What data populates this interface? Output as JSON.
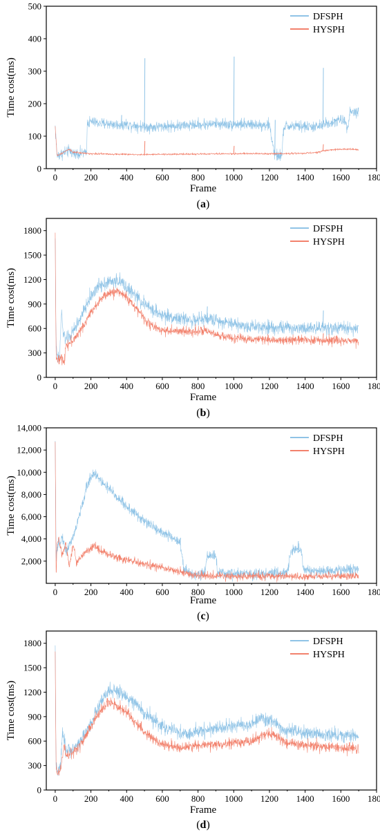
{
  "chart_data": [
    {
      "type": "line",
      "panel_label": "a",
      "xlabel": "Frame",
      "ylabel": "Time cost(ms)",
      "xlim": [
        -50,
        1800
      ],
      "ylim": [
        0,
        500
      ],
      "xticks": [
        "0",
        "200",
        "400",
        "600",
        "800",
        "1000",
        "1200",
        "1400",
        "1600",
        "1800"
      ],
      "yticks": [
        "0",
        "100",
        "200",
        "300",
        "400",
        "500"
      ],
      "grid": false,
      "legend_position": "top-right",
      "series": [
        {
          "name": "DFSPH",
          "color": "#8fc3e6",
          "noise": 12,
          "x": [
            0,
            10,
            20,
            40,
            60,
            80,
            100,
            120,
            150,
            175,
            180,
            200,
            250,
            300,
            350,
            400,
            450,
            500,
            550,
            600,
            700,
            800,
            900,
            1000,
            1100,
            1200,
            1230,
            1270,
            1280,
            1300,
            1400,
            1470,
            1490,
            1500,
            1520,
            1540,
            1600,
            1620,
            1640,
            1650,
            1700
          ],
          "y": [
            130,
            40,
            42,
            48,
            52,
            55,
            48,
            45,
            48,
            50,
            140,
            145,
            140,
            138,
            135,
            137,
            133,
            130,
            128,
            130,
            132,
            135,
            138,
            137,
            135,
            135,
            40,
            40,
            128,
            130,
            130,
            128,
            132,
            135,
            140,
            140,
            150,
            148,
            130,
            175,
            175
          ],
          "spikes": [
            [
              500,
              340
            ],
            [
              1000,
              345
            ],
            [
              1500,
              310
            ],
            [
              370,
              165
            ],
            [
              1230,
              150
            ]
          ]
        },
        {
          "name": "HYSPH",
          "color": "#f2816c",
          "noise": 2,
          "x": [
            0,
            10,
            30,
            60,
            80,
            100,
            150,
            200,
            300,
            400,
            500,
            600,
            800,
            1000,
            1200,
            1400,
            1470,
            1500,
            1550,
            1600,
            1650,
            1700
          ],
          "y": [
            130,
            40,
            45,
            55,
            60,
            50,
            48,
            46,
            45,
            44,
            43,
            44,
            45,
            46,
            46,
            47,
            50,
            55,
            58,
            60,
            60,
            58
          ],
          "spikes": [
            [
              500,
              85
            ],
            [
              1000,
              70
            ],
            [
              1500,
              75
            ]
          ]
        }
      ]
    },
    {
      "type": "line",
      "panel_label": "b",
      "xlabel": "Frame",
      "ylabel": "Time cost(ms)",
      "xlim": [
        -50,
        1800
      ],
      "ylim": [
        0,
        1950
      ],
      "xticks": [
        "0",
        "200",
        "400",
        "600",
        "800",
        "1000",
        "1200",
        "1400",
        "1600",
        "1800"
      ],
      "yticks": [
        "0",
        "300",
        "600",
        "900",
        "1200",
        "1500",
        "1800"
      ],
      "grid": false,
      "legend_position": "top-right",
      "series": [
        {
          "name": "DFSPH",
          "color": "#8fc3e6",
          "noise": 60,
          "x": [
            0,
            5,
            15,
            25,
            35,
            45,
            60,
            80,
            100,
            150,
            200,
            250,
            300,
            350,
            380,
            400,
            450,
            500,
            550,
            600,
            700,
            800,
            850,
            900,
            1000,
            1050,
            1100,
            1200,
            1300,
            1400,
            1500,
            1600,
            1700
          ],
          "y": [
            1750,
            350,
            220,
            260,
            820,
            520,
            480,
            500,
            560,
            760,
            1000,
            1140,
            1170,
            1180,
            1150,
            1100,
            1000,
            900,
            820,
            760,
            720,
            700,
            720,
            700,
            660,
            630,
            630,
            620,
            610,
            610,
            610,
            605,
            600
          ],
          "spikes": [
            [
              850,
              870
            ],
            [
              1500,
              820
            ]
          ]
        },
        {
          "name": "HYSPH",
          "color": "#f2816c",
          "noise": 40,
          "x": [
            0,
            5,
            15,
            30,
            50,
            60,
            80,
            100,
            150,
            200,
            250,
            300,
            350,
            380,
            400,
            450,
            500,
            550,
            600,
            700,
            800,
            850,
            900,
            1000,
            1100,
            1200,
            1300,
            1400,
            1500,
            1600,
            1700
          ],
          "y": [
            1750,
            280,
            190,
            240,
            200,
            400,
            420,
            450,
            600,
            800,
            950,
            1030,
            1060,
            1020,
            980,
            860,
            720,
            620,
            580,
            560,
            570,
            560,
            520,
            480,
            470,
            465,
            460,
            460,
            455,
            455,
            450
          ],
          "spikes": [
            [
              1500,
              540
            ]
          ]
        }
      ]
    },
    {
      "type": "line",
      "panel_label": "c",
      "xlabel": "Frame",
      "ylabel": "Time cost(ms)",
      "xlim": [
        -50,
        1800
      ],
      "ylim": [
        0,
        14000
      ],
      "xticks": [
        "0",
        "200",
        "400",
        "600",
        "800",
        "1000",
        "1200",
        "1400",
        "1600",
        "1800"
      ],
      "yticks": [
        "2,000",
        "4,000",
        "6,000",
        "8,000",
        "10,000",
        "12,000",
        "14,000"
      ],
      "grid": false,
      "legend_position": "top-right",
      "series": [
        {
          "name": "DFSPH",
          "color": "#8fc3e6",
          "noise": 350,
          "x": [
            0,
            5,
            20,
            40,
            60,
            80,
            100,
            120,
            150,
            180,
            200,
            220,
            250,
            300,
            400,
            500,
            600,
            690,
            700,
            720,
            760,
            800,
            840,
            850,
            900,
            910,
            1000,
            1100,
            1200,
            1300,
            1320,
            1380,
            1390,
            1500,
            1600,
            1700
          ],
          "y": [
            12500,
            2500,
            3500,
            4200,
            2800,
            3500,
            4200,
            5200,
            7000,
            8800,
            9600,
            10000,
            9300,
            8500,
            6900,
            5600,
            4600,
            3800,
            3700,
            1200,
            900,
            800,
            900,
            2500,
            2500,
            900,
            850,
            850,
            900,
            950,
            3000,
            3000,
            1200,
            1100,
            1200,
            1300
          ],
          "spikes": [
            [
              700,
              4100
            ],
            [
              1360,
              3800
            ]
          ]
        },
        {
          "name": "HYSPH",
          "color": "#f2816c",
          "noise": 250,
          "x": [
            0,
            5,
            10,
            20,
            40,
            60,
            80,
            100,
            120,
            150,
            200,
            220,
            250,
            300,
            400,
            500,
            600,
            700,
            800,
            900,
            1000,
            1200,
            1400,
            1600,
            1700
          ],
          "y": [
            12500,
            500,
            3500,
            4000,
            2500,
            3500,
            1500,
            3500,
            1800,
            2500,
            3200,
            3400,
            3000,
            2600,
            2100,
            1700,
            1400,
            1000,
            700,
            650,
            640,
            640,
            640,
            650,
            650
          ],
          "spikes": []
        }
      ]
    },
    {
      "type": "line",
      "panel_label": "d",
      "xlabel": "Frame",
      "ylabel": "Time cost(ms)",
      "xlim": [
        -50,
        1800
      ],
      "ylim": [
        0,
        1950
      ],
      "xticks": [
        "0",
        "200",
        "400",
        "600",
        "800",
        "1000",
        "1200",
        "1400",
        "1600",
        "1800"
      ],
      "yticks": [
        "0",
        "300",
        "600",
        "900",
        "1200",
        "1500",
        "1800"
      ],
      "grid": false,
      "legend_position": "top-right",
      "series": [
        {
          "name": "DFSPH",
          "color": "#8fc3e6",
          "noise": 60,
          "x": [
            0,
            5,
            15,
            30,
            40,
            60,
            100,
            150,
            200,
            250,
            300,
            350,
            400,
            450,
            500,
            550,
            600,
            700,
            750,
            800,
            900,
            1000,
            1100,
            1150,
            1200,
            1250,
            1300,
            1400,
            1500,
            1600,
            1700
          ],
          "y": [
            1700,
            300,
            200,
            300,
            700,
            480,
            500,
            620,
            820,
            1050,
            1220,
            1200,
            1150,
            1050,
            950,
            860,
            780,
            700,
            680,
            720,
            760,
            780,
            800,
            880,
            860,
            780,
            720,
            700,
            680,
            670,
            660
          ],
          "spikes": []
        },
        {
          "name": "HYSPH",
          "color": "#f2816c",
          "noise": 45,
          "x": [
            0,
            5,
            15,
            30,
            50,
            60,
            100,
            150,
            200,
            250,
            300,
            350,
            400,
            450,
            500,
            550,
            600,
            700,
            800,
            900,
            1000,
            1100,
            1150,
            1200,
            1250,
            1300,
            1400,
            1500,
            1600,
            1700
          ],
          "y": [
            1700,
            240,
            180,
            260,
            560,
            420,
            450,
            580,
            780,
            960,
            1080,
            1030,
            950,
            830,
            720,
            620,
            560,
            520,
            550,
            560,
            580,
            600,
            660,
            700,
            650,
            570,
            550,
            540,
            520,
            510
          ],
          "spikes": []
        }
      ]
    }
  ]
}
